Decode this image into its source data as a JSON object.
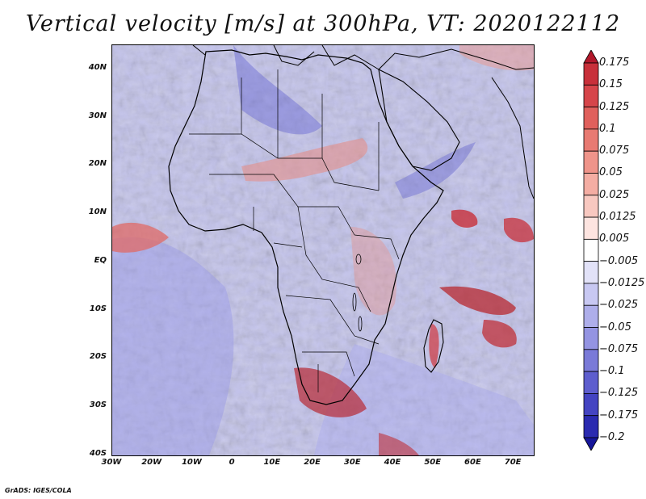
{
  "title": "Vertical velocity [m/s] at 300hPa, VT: 2020122112",
  "credit": "GrADS: IGES/COLA",
  "map": {
    "region": "Africa",
    "variable": "vertical velocity",
    "units": "m/s",
    "pressure_level": "300hPa",
    "valid_time": "2020122112",
    "lat_labels": [
      "40N",
      "30N",
      "20N",
      "10N",
      "EQ",
      "10S",
      "20S",
      "30S",
      "40S"
    ],
    "lon_labels": [
      "30W",
      "20W",
      "10W",
      "0",
      "10E",
      "20E",
      "30E",
      "40E",
      "50E",
      "60E",
      "70E"
    ],
    "lat_values": [
      40,
      30,
      20,
      10,
      0,
      -10,
      -20,
      -30,
      -40
    ],
    "lon_values": [
      -30,
      -20,
      -10,
      0,
      10,
      20,
      30,
      40,
      50,
      60,
      70
    ],
    "lat_range": [
      -40,
      45
    ],
    "lon_range": [
      -30,
      75
    ]
  },
  "colorbar": {
    "labels": [
      "0.175",
      "0.15",
      "0.125",
      "0.1",
      "0.075",
      "0.05",
      "0.025",
      "0.0125",
      "0.005",
      "−0.005",
      "−0.0125",
      "−0.025",
      "−0.05",
      "−0.075",
      "−0.1",
      "−0.125",
      "−0.175",
      "−0.2"
    ],
    "colors": [
      "#b2182b",
      "#c8303a",
      "#d6454a",
      "#e0605c",
      "#e87a72",
      "#ef948a",
      "#f4ada3",
      "#f8c8c0",
      "#fde4e0",
      "#ffffff",
      "#e2e2f8",
      "#c8c8f2",
      "#aeaeea",
      "#9494e2",
      "#7a7ad8",
      "#5e5ece",
      "#4444c2",
      "#2a2ab0",
      "#16169a"
    ]
  }
}
